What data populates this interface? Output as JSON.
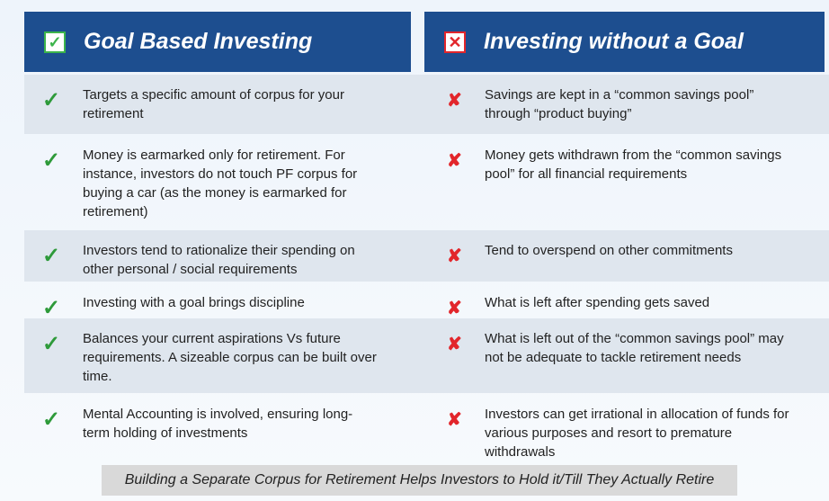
{
  "header": {
    "left_title": "Goal Based Investing",
    "right_title": "Investing without a Goal"
  },
  "table": {
    "rows": [
      [
        "Targets a specific amount of corpus for your retirement",
        "Savings are kept in a “common savings pool” through “product buying”"
      ],
      [
        "Money is earmarked only for retirement. For instance, investors do not touch PF corpus for buying a car (as the money is earmarked for retirement)",
        "Money gets withdrawn from the “common savings pool” for all financial requirements"
      ],
      [
        "Investors tend to rationalize their spending on other personal / social requirements",
        "Tend to overspend on other commitments"
      ],
      [
        "Investing with a goal brings discipline",
        "What is left after spending gets saved"
      ],
      [
        "Balances your current aspirations Vs future requirements. A sizeable corpus can be built over time.",
        "What is left out of the “common savings pool” may not be adequate to tackle retirement needs"
      ],
      [
        "Mental Accounting is involved, ensuring long-term holding of investments",
        "Investors can get irrational in allocation of funds for various purposes and resort to premature withdrawals"
      ]
    ]
  },
  "footer": "Building a Separate Corpus for Retirement Helps Investors to Hold it/Till They Actually Retire"
}
